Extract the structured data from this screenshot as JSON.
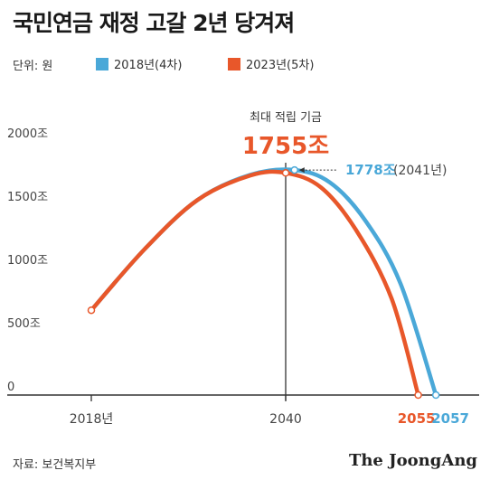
{
  "title": "국민연금 재정 고갈 2년 당겨져",
  "unit_label": "단위: 원",
  "legend": [
    {
      "label": "2018년(4차)",
      "color": "#4aa8d8"
    },
    {
      "label": "2023년(5차)",
      "color": "#e8572a"
    }
  ],
  "source": "자료: 보건복지부",
  "brand": "The JoongAng",
  "chart_data": {
    "type": "line",
    "x_ticks": [
      "2018년",
      "2040"
    ],
    "x_end_labels": [
      "2055",
      "2057"
    ],
    "y_ticks": [
      "2000조",
      "1500조",
      "1000조",
      "500조",
      "0"
    ],
    "ylim": [
      0,
      2000
    ],
    "series": [
      {
        "name": "2018년(4차)",
        "color": "#4aa8d8",
        "points": [
          [
            2018,
            670
          ],
          [
            2024,
            1150
          ],
          [
            2030,
            1540
          ],
          [
            2036,
            1740
          ],
          [
            2041,
            1778
          ],
          [
            2045,
            1680
          ],
          [
            2049,
            1380
          ],
          [
            2053,
            880
          ],
          [
            2057,
            0
          ]
        ]
      },
      {
        "name": "2023년(5차)",
        "color": "#e8572a",
        "points": [
          [
            2018,
            670
          ],
          [
            2024,
            1150
          ],
          [
            2030,
            1540
          ],
          [
            2036,
            1735
          ],
          [
            2040,
            1755
          ],
          [
            2044,
            1640
          ],
          [
            2048,
            1300
          ],
          [
            2052,
            760
          ],
          [
            2055,
            0
          ]
        ]
      }
    ],
    "annotations": {
      "peak_heading": "최대 적립 기금",
      "peak_value": "1755조",
      "peak_year": 2040,
      "blue_peak_value": "1778조",
      "blue_peak_year": "(2041년)"
    },
    "grid": false
  }
}
